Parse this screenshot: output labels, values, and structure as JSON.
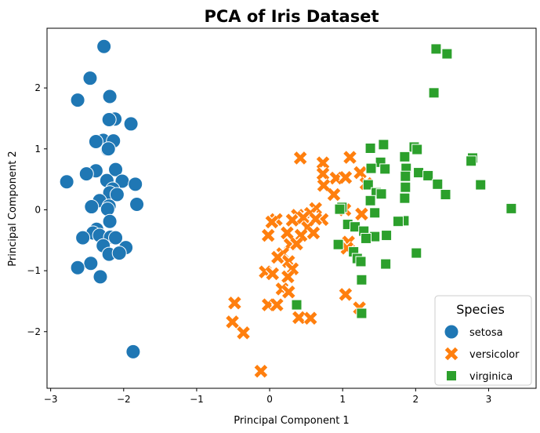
{
  "chart_data": {
    "type": "scatter",
    "title": "PCA of Iris Dataset",
    "xlabel": "Principal Component 1",
    "ylabel": "Principal Component 2",
    "xlim": [
      -3.05,
      3.65
    ],
    "ylim": [
      -2.93,
      2.98
    ],
    "xticks": [
      -3,
      -2,
      -1,
      0,
      1,
      2,
      3
    ],
    "yticks": [
      -2,
      -1,
      0,
      1,
      2
    ],
    "grid": false,
    "legend": {
      "title": "Species",
      "position": "lower-right"
    },
    "series": [
      {
        "name": "setosa",
        "color": "#1f77b4",
        "marker": "circle",
        "points": [
          [
            -2.27,
            2.68
          ],
          [
            -2.46,
            2.16
          ],
          [
            -2.19,
            1.86
          ],
          [
            -2.63,
            1.8
          ],
          [
            -2.12,
            1.49
          ],
          [
            -2.2,
            1.48
          ],
          [
            -1.9,
            1.41
          ],
          [
            -2.28,
            1.14
          ],
          [
            -2.38,
            1.12
          ],
          [
            -2.14,
            1.13
          ],
          [
            -2.22,
            0.99
          ],
          [
            -2.21,
            1.0
          ],
          [
            -2.11,
            0.66
          ],
          [
            -2.38,
            0.64
          ],
          [
            -2.51,
            0.59
          ],
          [
            -2.78,
            0.46
          ],
          [
            -2.23,
            0.48
          ],
          [
            -2.02,
            0.47
          ],
          [
            -1.84,
            0.42
          ],
          [
            -2.15,
            0.34
          ],
          [
            -2.19,
            0.28
          ],
          [
            -2.09,
            0.25
          ],
          [
            -2.33,
            0.15
          ],
          [
            -2.2,
            0.06
          ],
          [
            -2.44,
            0.05
          ],
          [
            -1.82,
            0.09
          ],
          [
            -2.22,
            0.01
          ],
          [
            -2.19,
            -0.19
          ],
          [
            -2.37,
            -0.32
          ],
          [
            -2.42,
            -0.38
          ],
          [
            -2.33,
            -0.42
          ],
          [
            -2.56,
            -0.46
          ],
          [
            -2.18,
            -0.45
          ],
          [
            -2.11,
            -0.46
          ],
          [
            -2.28,
            -0.59
          ],
          [
            -1.97,
            -0.62
          ],
          [
            -2.2,
            -0.73
          ],
          [
            -2.06,
            -0.71
          ],
          [
            -2.45,
            -0.88
          ],
          [
            -2.63,
            -0.95
          ],
          [
            -2.32,
            -1.1
          ],
          [
            -1.87,
            -2.33
          ]
        ]
      },
      {
        "name": "versicolor",
        "color": "#ff7f0e",
        "marker": "x",
        "points": [
          [
            0.42,
            0.85
          ],
          [
            1.1,
            0.86
          ],
          [
            0.73,
            0.77
          ],
          [
            0.73,
            0.59
          ],
          [
            0.91,
            0.52
          ],
          [
            1.04,
            0.53
          ],
          [
            1.24,
            0.61
          ],
          [
            1.32,
            0.43
          ],
          [
            0.74,
            0.4
          ],
          [
            0.88,
            0.25
          ],
          [
            1.03,
            0.0
          ],
          [
            0.63,
            0.02
          ],
          [
            0.56,
            -0.06
          ],
          [
            0.38,
            -0.09
          ],
          [
            0.31,
            -0.17
          ],
          [
            0.72,
            -0.16
          ],
          [
            0.09,
            -0.16
          ],
          [
            0.03,
            -0.2
          ],
          [
            0.46,
            -0.13
          ],
          [
            0.63,
            -0.15
          ],
          [
            0.24,
            -0.38
          ],
          [
            0.52,
            -0.29
          ],
          [
            -0.02,
            -0.42
          ],
          [
            0.43,
            -0.42
          ],
          [
            0.6,
            -0.38
          ],
          [
            0.28,
            -0.57
          ],
          [
            0.37,
            -0.56
          ],
          [
            0.18,
            -0.72
          ],
          [
            0.11,
            -0.78
          ],
          [
            0.26,
            -0.85
          ],
          [
            0.31,
            -0.97
          ],
          [
            1.08,
            -0.53
          ],
          [
            1.06,
            -0.63
          ],
          [
            1.26,
            -0.07
          ],
          [
            -0.06,
            -1.02
          ],
          [
            0.04,
            -1.05
          ],
          [
            0.25,
            -1.1
          ],
          [
            0.17,
            -1.3
          ],
          [
            0.26,
            -1.35
          ],
          [
            -0.02,
            -1.56
          ],
          [
            0.1,
            -1.56
          ],
          [
            0.4,
            -1.77
          ],
          [
            0.56,
            -1.78
          ],
          [
            1.04,
            -1.39
          ],
          [
            1.23,
            -1.61
          ],
          [
            -0.48,
            -1.53
          ],
          [
            -0.51,
            -1.84
          ],
          [
            -0.36,
            -2.02
          ],
          [
            -0.12,
            -2.65
          ]
        ]
      },
      {
        "name": "virginica",
        "color": "#2ca02c",
        "marker": "square",
        "points": [
          [
            2.28,
            2.64
          ],
          [
            2.43,
            2.56
          ],
          [
            2.25,
            1.92
          ],
          [
            1.56,
            1.07
          ],
          [
            1.38,
            1.01
          ],
          [
            1.98,
            1.03
          ],
          [
            2.02,
            0.99
          ],
          [
            1.85,
            0.87
          ],
          [
            2.78,
            0.85
          ],
          [
            2.76,
            0.8
          ],
          [
            1.52,
            0.78
          ],
          [
            1.87,
            0.68
          ],
          [
            1.58,
            0.67
          ],
          [
            1.39,
            0.68
          ],
          [
            2.04,
            0.61
          ],
          [
            2.17,
            0.56
          ],
          [
            1.86,
            0.55
          ],
          [
            2.3,
            0.42
          ],
          [
            2.89,
            0.41
          ],
          [
            1.35,
            0.41
          ],
          [
            1.86,
            0.37
          ],
          [
            1.46,
            0.28
          ],
          [
            1.53,
            0.26
          ],
          [
            2.41,
            0.25
          ],
          [
            1.85,
            0.19
          ],
          [
            1.38,
            0.15
          ],
          [
            3.31,
            0.02
          ],
          [
            0.99,
            0.04
          ],
          [
            0.96,
            0.01
          ],
          [
            1.44,
            -0.05
          ],
          [
            1.84,
            -0.18
          ],
          [
            1.76,
            -0.19
          ],
          [
            1.07,
            -0.24
          ],
          [
            1.17,
            -0.28
          ],
          [
            1.29,
            -0.35
          ],
          [
            1.6,
            -0.42
          ],
          [
            1.44,
            -0.44
          ],
          [
            1.32,
            -0.47
          ],
          [
            0.94,
            -0.57
          ],
          [
            1.15,
            -0.69
          ],
          [
            2.01,
            -0.71
          ],
          [
            1.59,
            -0.89
          ],
          [
            1.2,
            -0.8
          ],
          [
            1.25,
            -0.85
          ],
          [
            1.26,
            -1.15
          ],
          [
            0.37,
            -1.56
          ],
          [
            1.26,
            -1.7
          ]
        ]
      }
    ]
  }
}
